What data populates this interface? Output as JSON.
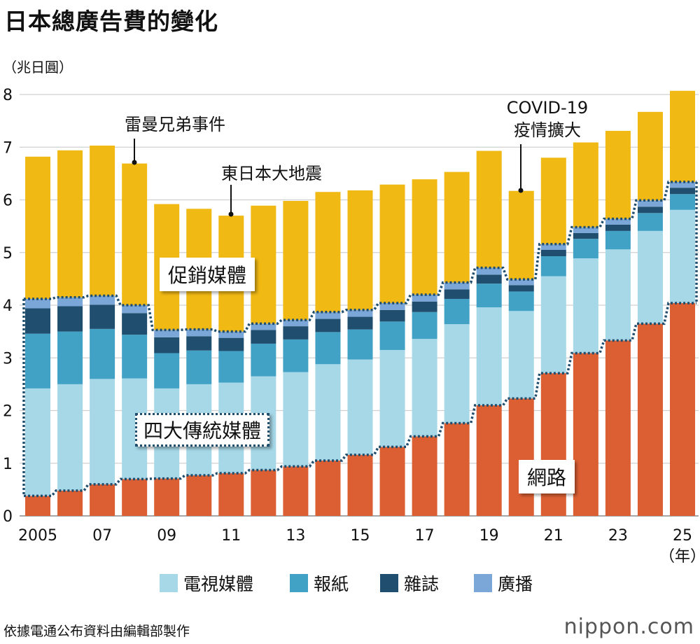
{
  "title": "日本總廣告費的變化",
  "unit": "（兆日圓）",
  "source": "依據電通公布資料由編輯部製作",
  "logo": "nippon.com",
  "chart_data": {
    "type": "bar",
    "stacked": true,
    "title": "日本總廣告費的變化",
    "ylabel": "（兆日圓）",
    "xlabel": "（年）",
    "ylim": [
      0,
      8
    ],
    "yticks": [
      "0",
      "1",
      "2",
      "3",
      "4",
      "5",
      "6",
      "7",
      "8"
    ],
    "grid": true,
    "years": [
      2005,
      2006,
      2007,
      2008,
      2009,
      2010,
      2011,
      2012,
      2013,
      2014,
      2015,
      2016,
      2017,
      2018,
      2019,
      2020,
      2021,
      2022,
      2023,
      2024,
      2025
    ],
    "xtick_labels": [
      {
        "index": 0,
        "text": "2005"
      },
      {
        "index": 2,
        "text": "07"
      },
      {
        "index": 4,
        "text": "09"
      },
      {
        "index": 6,
        "text": "11"
      },
      {
        "index": 8,
        "text": "13"
      },
      {
        "index": 10,
        "text": "15"
      },
      {
        "index": 12,
        "text": "17"
      },
      {
        "index": 14,
        "text": "19"
      },
      {
        "index": 16,
        "text": "21"
      },
      {
        "index": 18,
        "text": "23"
      },
      {
        "index": 20,
        "text": "25"
      }
    ],
    "series": [
      {
        "name": "網路",
        "color": "#DB5F33",
        "values": [
          0.38,
          0.48,
          0.6,
          0.7,
          0.71,
          0.77,
          0.81,
          0.87,
          0.94,
          1.05,
          1.16,
          1.31,
          1.51,
          1.76,
          2.1,
          2.23,
          2.71,
          3.09,
          3.33,
          3.65,
          4.04
        ]
      },
      {
        "name": "電視媒體",
        "color": "#A6D8E8",
        "values": [
          2.04,
          2.02,
          2.0,
          1.91,
          1.71,
          1.73,
          1.72,
          1.78,
          1.79,
          1.83,
          1.81,
          1.84,
          1.85,
          1.88,
          1.86,
          1.66,
          1.84,
          1.8,
          1.73,
          1.76,
          1.77
        ]
      },
      {
        "name": "報紙",
        "color": "#41A2C6",
        "values": [
          1.04,
          1.0,
          0.95,
          0.83,
          0.67,
          0.64,
          0.6,
          0.62,
          0.62,
          0.61,
          0.57,
          0.54,
          0.51,
          0.48,
          0.45,
          0.37,
          0.38,
          0.37,
          0.35,
          0.34,
          0.3
        ]
      },
      {
        "name": "雜誌",
        "color": "#1F4E6F",
        "values": [
          0.48,
          0.48,
          0.46,
          0.41,
          0.3,
          0.27,
          0.25,
          0.26,
          0.25,
          0.25,
          0.24,
          0.22,
          0.2,
          0.18,
          0.17,
          0.12,
          0.12,
          0.11,
          0.12,
          0.12,
          0.12
        ]
      },
      {
        "name": "廣播",
        "color": "#7AA7D8",
        "values": [
          0.18,
          0.17,
          0.17,
          0.15,
          0.14,
          0.13,
          0.12,
          0.12,
          0.12,
          0.13,
          0.13,
          0.13,
          0.13,
          0.13,
          0.13,
          0.11,
          0.11,
          0.11,
          0.11,
          0.12,
          0.11
        ]
      },
      {
        "name": "促銷媒體",
        "color": "#F0B914",
        "values": [
          2.7,
          2.79,
          2.85,
          2.69,
          2.39,
          2.29,
          2.2,
          2.24,
          2.26,
          2.28,
          2.27,
          2.25,
          2.19,
          2.1,
          2.22,
          1.68,
          1.64,
          1.61,
          1.67,
          1.68,
          1.73
        ]
      }
    ],
    "group_labels": {
      "promo": "促銷媒體",
      "four_media": "四大傳統媒體",
      "internet": "網路"
    },
    "annotations": [
      {
        "text": "雷曼兄弟事件",
        "year": 2008
      },
      {
        "text": "東日本大地震",
        "year": 2011
      },
      {
        "text": "COVID-19",
        "text2": "疫情擴大",
        "year": 2020
      }
    ],
    "legend": [
      "電視媒體",
      "報紙",
      "雜誌",
      "廣播"
    ]
  }
}
